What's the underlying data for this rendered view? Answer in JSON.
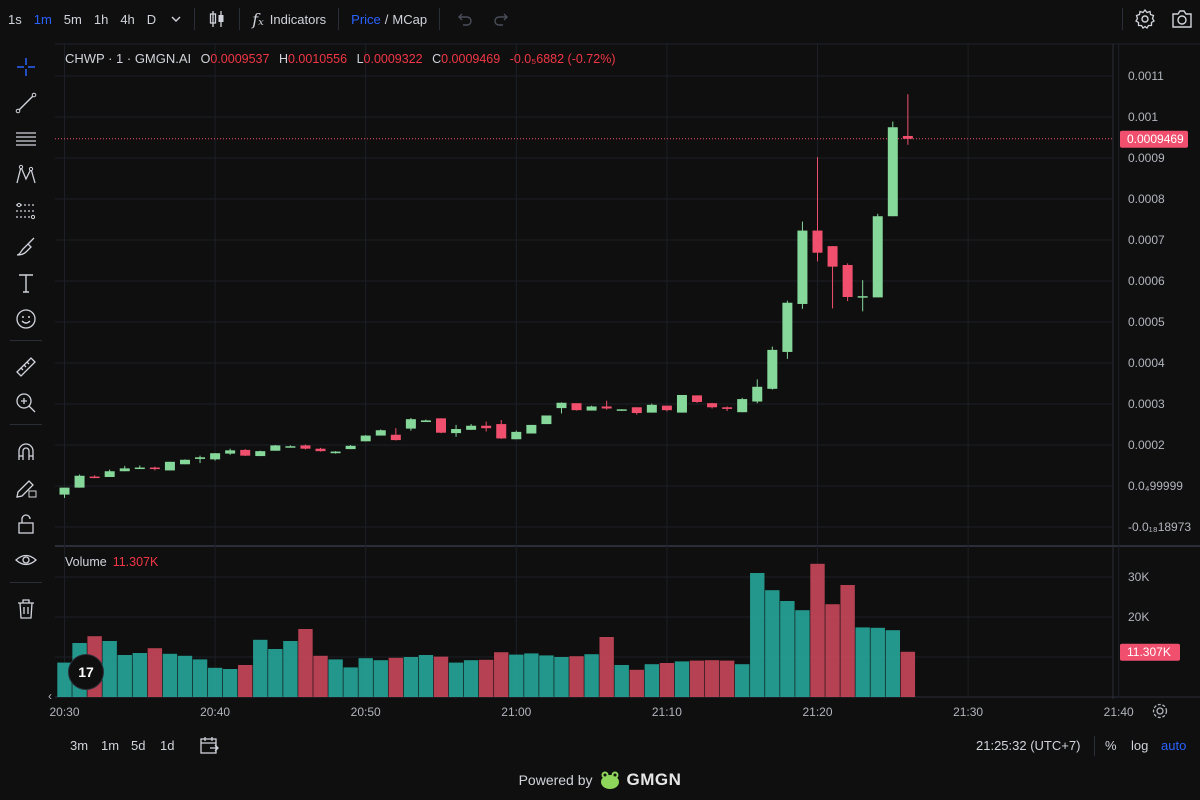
{
  "toolbar": {
    "timeframes": [
      "1s",
      "1m",
      "5m",
      "1h",
      "4h",
      "D"
    ],
    "active_timeframe": "1m",
    "indicators_label": "Indicators",
    "price_label": "Price",
    "slash": "/",
    "mcap_label": "MCap"
  },
  "legend": {
    "symbol": "CHWP · 1 · GMGN.AI",
    "o_label": "O",
    "o_value": "0.0009537",
    "h_label": "H",
    "h_value": "0.0010556",
    "l_label": "L",
    "l_value": "0.0009322",
    "c_label": "C",
    "c_value": "0.0009469",
    "change": "-0.0₅6882 (-0.72%)"
  },
  "volume_legend": {
    "label": "Volume",
    "value": "11.307K"
  },
  "bottom": {
    "ranges": [
      "3m",
      "1m",
      "5d",
      "1d"
    ],
    "clock": "21:25:32 (UTC+7)",
    "percent": "%",
    "log": "log",
    "auto": "auto"
  },
  "footer": {
    "powered": "Powered by",
    "brand": "GMGN"
  },
  "colors": {
    "up": "#86d79a",
    "down": "#f0506e",
    "vol_up": "#26a69a",
    "vol_down": "#c8475a",
    "accent": "#2962ff"
  },
  "chart_data": {
    "type": "candlestick",
    "price_axis": {
      "ticks": [
        0.0011,
        0.001,
        0.0009,
        0.0008,
        0.0007,
        0.0006,
        0.0005,
        0.0004,
        0.0003,
        0.0002,
        0.0001,
        0
      ],
      "labels": [
        "0.0011",
        "0.001",
        "0.0009",
        "0.0008",
        "0.0007",
        "0.0006",
        "0.0005",
        "0.0004",
        "0.0003",
        "0.0002",
        "0.0₄99999",
        "-0.0₁₈18973"
      ],
      "current_price_label": "0.0009469",
      "current_price": 0.0009469
    },
    "volume_axis": {
      "ticks": [
        30000,
        20000,
        10000
      ],
      "labels": [
        "30K",
        "20K",
        ""
      ],
      "current_label": "11.307K",
      "current": 11307
    },
    "time_labels": [
      "20:30",
      "20:40",
      "20:50",
      "21:00",
      "21:10",
      "21:20",
      "21:30",
      "21:40"
    ],
    "first_minute": "20:30",
    "candles": [
      {
        "o": 7.9e-05,
        "h": 9.5e-05,
        "l": 7.1e-05,
        "c": 9.6e-05,
        "v": 8600
      },
      {
        "o": 9.6e-05,
        "h": 0.000128,
        "l": 9.6e-05,
        "c": 0.000125,
        "v": 13500
      },
      {
        "o": 0.000123,
        "h": 0.000126,
        "l": 0.000119,
        "c": 0.000121,
        "v": 15200
      },
      {
        "o": 0.000122,
        "h": 0.00014,
        "l": 0.000122,
        "c": 0.000136,
        "v": 14000
      },
      {
        "o": 0.000136,
        "h": 0.000149,
        "l": 0.000136,
        "c": 0.000143,
        "v": 10500
      },
      {
        "o": 0.000143,
        "h": 0.00015,
        "l": 0.000142,
        "c": 0.000145,
        "v": 11000
      },
      {
        "o": 0.000145,
        "h": 0.000147,
        "l": 0.000138,
        "c": 0.000142,
        "v": 12200
      },
      {
        "o": 0.000138,
        "h": 0.000159,
        "l": 0.000138,
        "c": 0.000159,
        "v": 10800
      },
      {
        "o": 0.000153,
        "h": 0.000165,
        "l": 0.000153,
        "c": 0.000164,
        "v": 10300
      },
      {
        "o": 0.000166,
        "h": 0.000174,
        "l": 0.000156,
        "c": 0.00017,
        "v": 9400
      },
      {
        "o": 0.000165,
        "h": 0.00018,
        "l": 0.000162,
        "c": 0.00018,
        "v": 7300
      },
      {
        "o": 0.000179,
        "h": 0.000191,
        "l": 0.000176,
        "c": 0.000187,
        "v": 7000
      },
      {
        "o": 0.000188,
        "h": 0.00019,
        "l": 0.000173,
        "c": 0.000174,
        "v": 8000
      },
      {
        "o": 0.000173,
        "h": 0.000186,
        "l": 0.000173,
        "c": 0.000185,
        "v": 14300
      },
      {
        "o": 0.000186,
        "h": 0.0002,
        "l": 0.000186,
        "c": 0.000199,
        "v": 12000
      },
      {
        "o": 0.000196,
        "h": 0.000199,
        "l": 0.000196,
        "c": 0.000197,
        "v": 14000
      },
      {
        "o": 0.000199,
        "h": 0.000201,
        "l": 0.000189,
        "c": 0.000191,
        "v": 17000
      },
      {
        "o": 0.000191,
        "h": 0.000193,
        "l": 0.000184,
        "c": 0.000185,
        "v": 10300
      },
      {
        "o": 0.00018,
        "h": 0.000185,
        "l": 0.000179,
        "c": 0.000184,
        "v": 9400
      },
      {
        "o": 0.00019,
        "h": 0.0002,
        "l": 0.00019,
        "c": 0.000198,
        "v": 7400
      },
      {
        "o": 0.000209,
        "h": 0.000224,
        "l": 0.000209,
        "c": 0.000223,
        "v": 9700
      },
      {
        "o": 0.000223,
        "h": 0.000238,
        "l": 0.000223,
        "c": 0.000236,
        "v": 9200
      },
      {
        "o": 0.000225,
        "h": 0.000241,
        "l": 0.000211,
        "c": 0.000212,
        "v": 9800
      },
      {
        "o": 0.00024,
        "h": 0.000266,
        "l": 0.000235,
        "c": 0.000263,
        "v": 10000
      },
      {
        "o": 0.000256,
        "h": 0.000262,
        "l": 0.000258,
        "c": 0.00026,
        "v": 10500
      },
      {
        "o": 0.000265,
        "h": 0.000265,
        "l": 0.000229,
        "c": 0.00023,
        "v": 10100
      },
      {
        "o": 0.000229,
        "h": 0.000249,
        "l": 0.00022,
        "c": 0.000239,
        "v": 8600
      },
      {
        "o": 0.000237,
        "h": 0.000251,
        "l": 0.000237,
        "c": 0.000247,
        "v": 9200
      },
      {
        "o": 0.000247,
        "h": 0.000257,
        "l": 0.000233,
        "c": 0.000241,
        "v": 9300
      },
      {
        "o": 0.000251,
        "h": 0.000261,
        "l": 0.000215,
        "c": 0.000216,
        "v": 11200
      },
      {
        "o": 0.000214,
        "h": 0.000235,
        "l": 0.000214,
        "c": 0.000232,
        "v": 10600
      },
      {
        "o": 0.000228,
        "h": 0.000249,
        "l": 0.000228,
        "c": 0.000249,
        "v": 10900
      },
      {
        "o": 0.000251,
        "h": 0.00027,
        "l": 0.000251,
        "c": 0.000272,
        "v": 10400
      },
      {
        "o": 0.00029,
        "h": 0.000304,
        "l": 0.000277,
        "c": 0.000303,
        "v": 10000
      },
      {
        "o": 0.000302,
        "h": 0.000301,
        "l": 0.000284,
        "c": 0.000285,
        "v": 10200
      },
      {
        "o": 0.000284,
        "h": 0.000296,
        "l": 0.000284,
        "c": 0.000294,
        "v": 10700
      },
      {
        "o": 0.000294,
        "h": 0.000308,
        "l": 0.000286,
        "c": 0.000289,
        "v": 15000
      },
      {
        "o": 0.000284,
        "h": 0.000287,
        "l": 0.000283,
        "c": 0.000287,
        "v": 8000
      },
      {
        "o": 0.000292,
        "h": 0.000292,
        "l": 0.000274,
        "c": 0.000278,
        "v": 6800
      },
      {
        "o": 0.000279,
        "h": 0.000301,
        "l": 0.000279,
        "c": 0.000298,
        "v": 8200
      },
      {
        "o": 0.000296,
        "h": 0.000296,
        "l": 0.000282,
        "c": 0.000285,
        "v": 8500
      },
      {
        "o": 0.000279,
        "h": 0.000321,
        "l": 0.000279,
        "c": 0.000322,
        "v": 8900
      },
      {
        "o": 0.000321,
        "h": 0.000321,
        "l": 0.000303,
        "c": 0.000305,
        "v": 9100
      },
      {
        "o": 0.000302,
        "h": 0.000303,
        "l": 0.000289,
        "c": 0.000292,
        "v": 9200
      },
      {
        "o": 0.000292,
        "h": 0.000294,
        "l": 0.000283,
        "c": 0.000288,
        "v": 9100
      },
      {
        "o": 0.00028,
        "h": 0.000315,
        "l": 0.00028,
        "c": 0.000312,
        "v": 8200
      },
      {
        "o": 0.000306,
        "h": 0.00036,
        "l": 0.000302,
        "c": 0.000342,
        "v": 31000
      },
      {
        "o": 0.000337,
        "h": 0.00044,
        "l": 0.000335,
        "c": 0.000432,
        "v": 26700
      },
      {
        "o": 0.000427,
        "h": 0.000552,
        "l": 0.00041,
        "c": 0.000547,
        "v": 24000
      },
      {
        "o": 0.000544,
        "h": 0.000745,
        "l": 0.000532,
        "c": 0.000723,
        "v": 21700
      },
      {
        "o": 0.000723,
        "h": 0.000902,
        "l": 0.000648,
        "c": 0.000669,
        "v": 33300
      },
      {
        "o": 0.000685,
        "h": 0.000685,
        "l": 0.000533,
        "c": 0.000635,
        "v": 23200
      },
      {
        "o": 0.000639,
        "h": 0.000643,
        "l": 0.000551,
        "c": 0.000561,
        "v": 28000
      },
      {
        "o": 0.000561,
        "h": 0.000602,
        "l": 0.000526,
        "c": 0.000563,
        "v": 17400
      },
      {
        "o": 0.00056,
        "h": 0.000764,
        "l": 0.000564,
        "c": 0.000758,
        "v": 17300
      },
      {
        "o": 0.000758,
        "h": 0.000989,
        "l": 0.000758,
        "c": 0.000975,
        "v": 16700
      },
      {
        "o": 0.0009537,
        "h": 0.0010556,
        "l": 0.0009322,
        "c": 0.0009469,
        "v": 11307
      }
    ]
  }
}
